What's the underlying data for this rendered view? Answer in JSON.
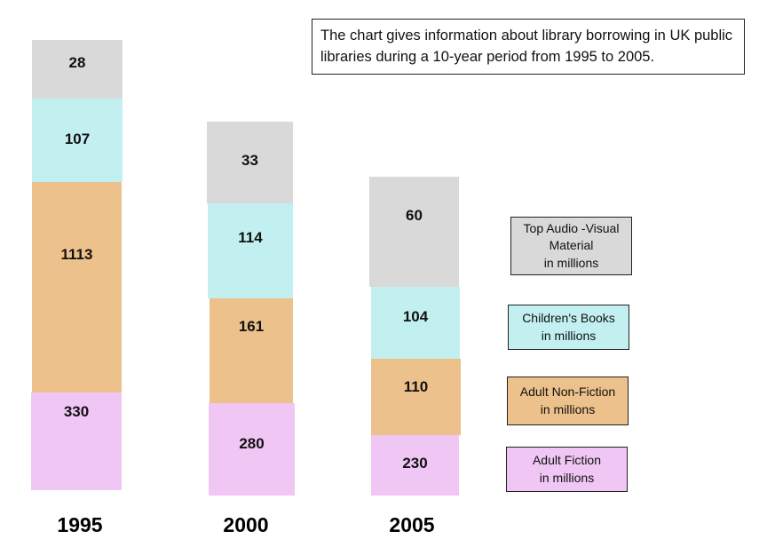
{
  "chart_data": {
    "type": "bar",
    "stacked": true,
    "title": "The chart gives information about library borrowing in UK public libraries during a 10-year period from 1995 to 2005.",
    "xlabel": "",
    "ylabel": "",
    "categories": [
      "1995",
      "2000",
      "2005"
    ],
    "series": [
      {
        "name": "Adult Fiction in millions",
        "color": "#f0c6f4",
        "values": [
          330,
          280,
          230
        ]
      },
      {
        "name": "Adult Non-Fiction in millions",
        "color": "#edc18b",
        "values": [
          1113,
          161,
          110
        ]
      },
      {
        "name": "Children's Books in millions",
        "color": "#c2f0f0",
        "values": [
          107,
          114,
          104
        ]
      },
      {
        "name": "Top Audio -Visual Material in millions",
        "color": "#d9d9d9",
        "values": [
          28,
          33,
          60
        ]
      }
    ],
    "legend": {
      "placement": "right",
      "order": [
        3,
        2,
        1,
        0
      ],
      "labels": [
        "Top Audio -Visual\nMaterial\nin millions",
        "Children's Books\nin millions",
        "Adult Non-Fiction\nin millions",
        "Adult Fiction\nin millions"
      ]
    },
    "grid": false
  }
}
